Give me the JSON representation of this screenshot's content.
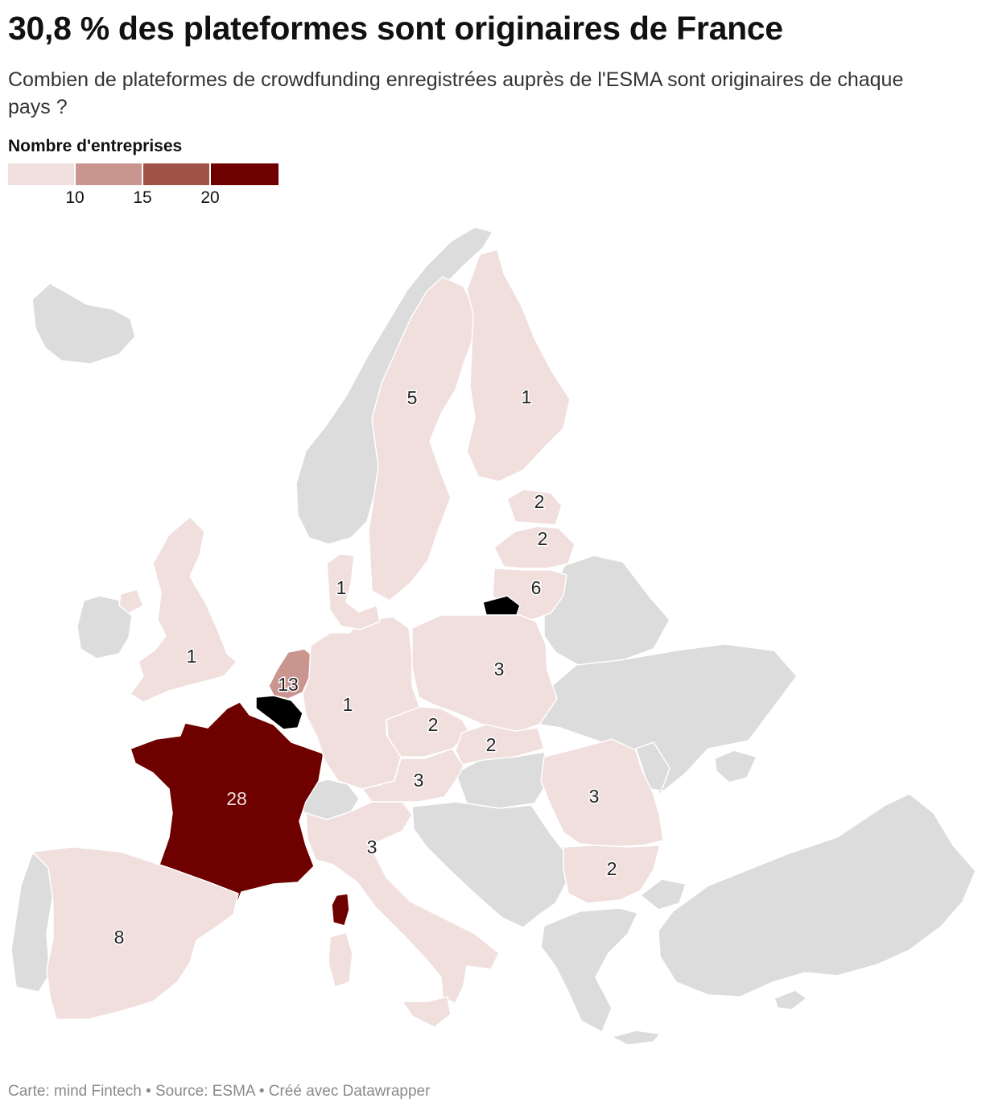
{
  "title": "30,8 % des plateformes sont originaires de France",
  "subtitle": "Combien de plateformes de crowdfunding enregistrées auprès de l'ESMA sont originaires de chaque pays ?",
  "legend": {
    "title": "Nombre d'entreprises",
    "ticks": [
      "10",
      "15",
      "20"
    ],
    "colors": [
      "#f0dfdd",
      "#c9958e",
      "#a15246",
      "#6e0000"
    ]
  },
  "map_data": {
    "colors": {
      "no_data": "#dcdcdc",
      "border": "#ffffff"
    },
    "countries": [
      {
        "name": "France",
        "value": 28
      },
      {
        "name": "Netherlands",
        "value": 13
      },
      {
        "name": "Spain",
        "value": 8
      },
      {
        "name": "Lithuania",
        "value": 6
      },
      {
        "name": "Sweden",
        "value": 5
      },
      {
        "name": "Poland",
        "value": 3
      },
      {
        "name": "Italy",
        "value": 3
      },
      {
        "name": "Romania",
        "value": 3
      },
      {
        "name": "Austria",
        "value": 3
      },
      {
        "name": "Estonia",
        "value": 2
      },
      {
        "name": "Latvia",
        "value": 2
      },
      {
        "name": "Czechia",
        "value": 2
      },
      {
        "name": "Slovakia",
        "value": 2
      },
      {
        "name": "Bulgaria",
        "value": 2
      },
      {
        "name": "Finland",
        "value": 1
      },
      {
        "name": "Denmark",
        "value": 1
      },
      {
        "name": "United Kingdom",
        "value": 1
      },
      {
        "name": "Germany",
        "value": 1
      }
    ]
  },
  "footer": "Carte: mind Fintech • Source: ESMA • Créé avec Datawrapper"
}
